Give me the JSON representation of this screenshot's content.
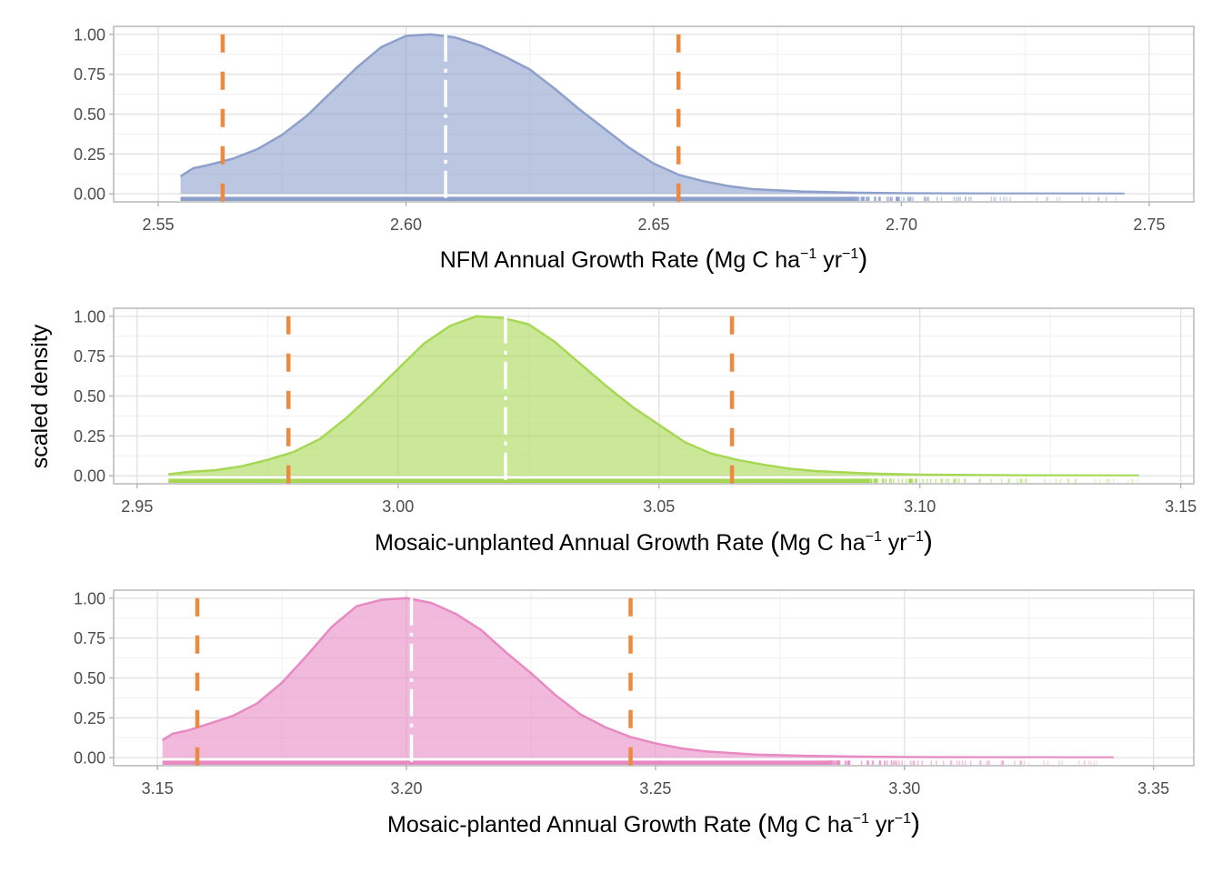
{
  "chart_data": {
    "type": "area",
    "shared_ylabel": "scaled density",
    "panels": [
      {
        "id": "nfm",
        "xlabel_main": "NFM Annual Growth Rate ",
        "xlabel_unit_prefix": "Mg C ha",
        "xlabel_exp1": "−1",
        "xlabel_unit_mid": " yr",
        "xlabel_exp2": "−1",
        "xlim": [
          2.541,
          2.759
        ],
        "ylim": [
          -0.05,
          1.05
        ],
        "xticks": [
          2.55,
          2.6,
          2.65,
          2.7,
          2.75
        ],
        "xtick_labels": [
          "2.55",
          "2.60",
          "2.65",
          "2.70",
          "2.75"
        ],
        "yticks": [
          0,
          0.25,
          0.5,
          0.75,
          1.0
        ],
        "ytick_labels": [
          "0.00",
          "0.25",
          "0.50",
          "0.75",
          "1.00"
        ],
        "fill_color": "#8da0cb",
        "line_color": "#8da0cb",
        "density": {
          "x": [
            2.5545,
            2.557,
            2.56,
            2.565,
            2.57,
            2.575,
            2.58,
            2.585,
            2.59,
            2.595,
            2.6,
            2.605,
            2.61,
            2.615,
            2.62,
            2.625,
            2.63,
            2.635,
            2.64,
            2.645,
            2.65,
            2.655,
            2.66,
            2.665,
            2.67,
            2.68,
            2.69,
            2.7,
            2.72,
            2.745
          ],
          "y": [
            0.11,
            0.16,
            0.18,
            0.22,
            0.28,
            0.37,
            0.49,
            0.64,
            0.79,
            0.92,
            0.99,
            1.0,
            0.98,
            0.93,
            0.86,
            0.78,
            0.66,
            0.53,
            0.41,
            0.29,
            0.19,
            0.12,
            0.08,
            0.05,
            0.03,
            0.015,
            0.008,
            0.004,
            0.002,
            0.001
          ]
        },
        "median": 2.608,
        "ci_lower": 2.563,
        "ci_upper": 2.655,
        "rug_range": [
          2.5545,
          2.745
        ],
        "rug_dense_until": 2.69
      },
      {
        "id": "mosaic-unplanted",
        "xlabel_main": "Mosaic-unplanted Annual Growth Rate ",
        "xlabel_unit_prefix": "Mg C ha",
        "xlabel_exp1": "−1",
        "xlabel_unit_mid": " yr",
        "xlabel_exp2": "−1",
        "xlim": [
          2.9455,
          3.1525
        ],
        "ylim": [
          -0.05,
          1.05
        ],
        "xticks": [
          2.95,
          3.0,
          3.05,
          3.1,
          3.15
        ],
        "xtick_labels": [
          "2.95",
          "3.00",
          "3.05",
          "3.10",
          "3.15"
        ],
        "yticks": [
          0,
          0.25,
          0.5,
          0.75,
          1.0
        ],
        "ytick_labels": [
          "0.00",
          "0.25",
          "0.50",
          "0.75",
          "1.00"
        ],
        "fill_color": "#a6d854",
        "line_color": "#a6d854",
        "density": {
          "x": [
            2.956,
            2.96,
            2.965,
            2.97,
            2.975,
            2.98,
            2.985,
            2.99,
            2.995,
            3.0,
            3.005,
            3.01,
            3.015,
            3.02,
            3.025,
            3.03,
            3.035,
            3.04,
            3.045,
            3.05,
            3.055,
            3.06,
            3.065,
            3.07,
            3.075,
            3.08,
            3.09,
            3.1,
            3.12,
            3.142
          ],
          "y": [
            0.01,
            0.025,
            0.035,
            0.06,
            0.1,
            0.15,
            0.23,
            0.36,
            0.51,
            0.67,
            0.83,
            0.94,
            1.0,
            0.99,
            0.95,
            0.84,
            0.7,
            0.56,
            0.43,
            0.32,
            0.21,
            0.14,
            0.1,
            0.07,
            0.045,
            0.03,
            0.015,
            0.007,
            0.003,
            0.001
          ]
        },
        "median": 3.0206,
        "ci_lower": 2.979,
        "ci_upper": 3.064,
        "rug_range": [
          2.956,
          3.142
        ],
        "rug_dense_until": 3.09
      },
      {
        "id": "mosaic-planted",
        "xlabel_main": "Mosaic-planted Annual Growth Rate ",
        "xlabel_unit_prefix": "Mg C ha",
        "xlabel_exp1": "−1",
        "xlabel_unit_mid": " yr",
        "xlabel_exp2": "−1",
        "xlim": [
          3.1412,
          3.3581
        ],
        "ylim": [
          -0.05,
          1.05
        ],
        "xticks": [
          3.15,
          3.2,
          3.25,
          3.3,
          3.35
        ],
        "xtick_labels": [
          "3.15",
          "3.20",
          "3.25",
          "3.30",
          "3.35"
        ],
        "yticks": [
          0,
          0.25,
          0.5,
          0.75,
          1.0
        ],
        "ytick_labels": [
          "0.00",
          "0.25",
          "0.50",
          "0.75",
          "1.00"
        ],
        "fill_color": "#e78ac3",
        "line_color": "#e78ac3",
        "density": {
          "x": [
            3.151,
            3.153,
            3.156,
            3.16,
            3.165,
            3.17,
            3.175,
            3.18,
            3.185,
            3.19,
            3.195,
            3.2,
            3.205,
            3.21,
            3.215,
            3.22,
            3.225,
            3.23,
            3.235,
            3.24,
            3.245,
            3.25,
            3.255,
            3.26,
            3.27,
            3.28,
            3.29,
            3.3,
            3.32,
            3.342
          ],
          "y": [
            0.11,
            0.15,
            0.17,
            0.21,
            0.26,
            0.34,
            0.47,
            0.64,
            0.82,
            0.95,
            0.99,
            1.0,
            0.97,
            0.9,
            0.8,
            0.66,
            0.53,
            0.39,
            0.27,
            0.19,
            0.13,
            0.09,
            0.06,
            0.04,
            0.02,
            0.012,
            0.007,
            0.004,
            0.002,
            0.001
          ]
        },
        "median": 3.201,
        "ci_lower": 3.158,
        "ci_upper": 3.245,
        "rug_range": [
          3.151,
          3.342
        ],
        "rug_dense_until": 3.285
      }
    ],
    "annotation_colors": {
      "ci_lines": "#ee8a3e",
      "median_line": "#ffffff"
    },
    "grid": true,
    "legend": "none"
  }
}
